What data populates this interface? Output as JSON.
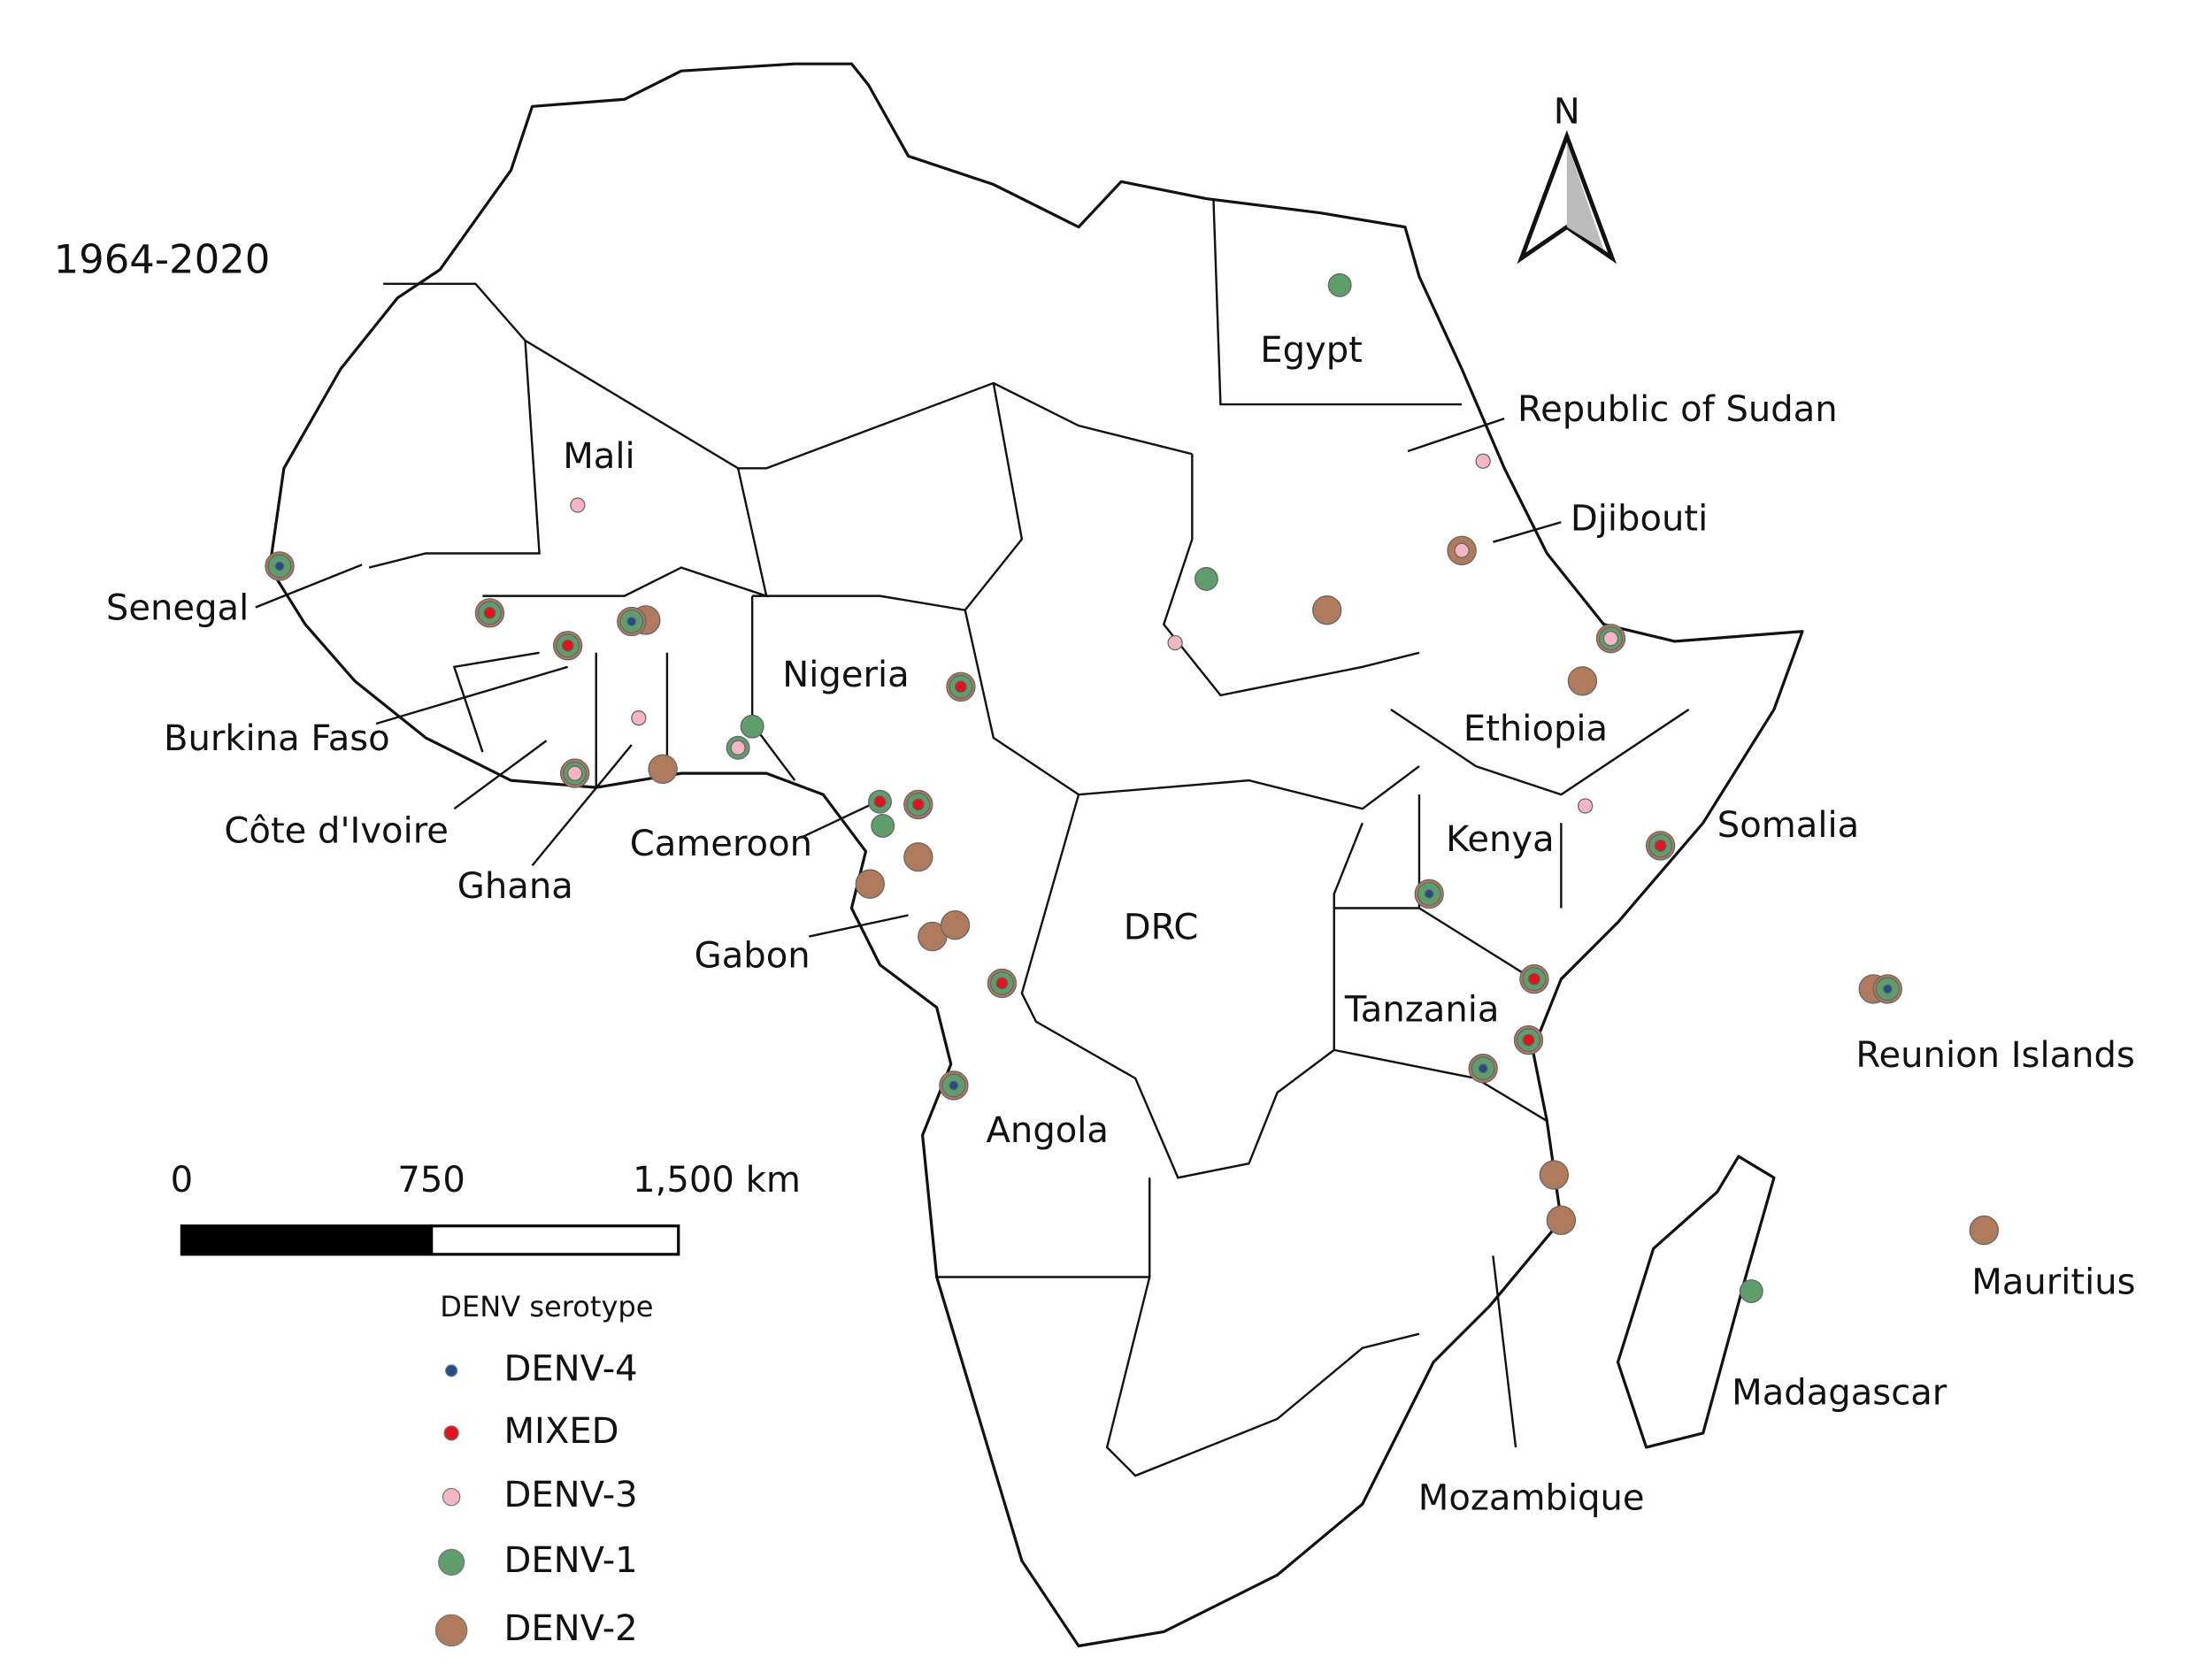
{
  "title": "1964-2020",
  "north": "N",
  "scale_bar": {
    "labels": [
      "0",
      "750",
      "1,500 km"
    ]
  },
  "legend": {
    "title": "DENV serotype",
    "items": [
      {
        "label": "DENV-4",
        "color": "#1f4e8c"
      },
      {
        "label": "MIXED",
        "color": "#e0141c"
      },
      {
        "label": "DENV-3",
        "color": "#f4b6c2"
      },
      {
        "label": "DENV-1",
        "color": "#5f9e6c"
      },
      {
        "label": "DENV-2",
        "color": "#b07a5c"
      }
    ]
  },
  "countries": [
    "Mali",
    "Senegal",
    "Burkina Faso",
    "Côte d'Ivoire",
    "Ghana",
    "Nigeria",
    "Cameroon",
    "Gabon",
    "Angola",
    "DRC",
    "Egypt",
    "Republic of Sudan",
    "Djibouti",
    "Ethiopia",
    "Kenya",
    "Somalia",
    "Tanzania",
    "Reunion Islands",
    "Mauritius",
    "Madagascar",
    "Mozambique"
  ]
}
